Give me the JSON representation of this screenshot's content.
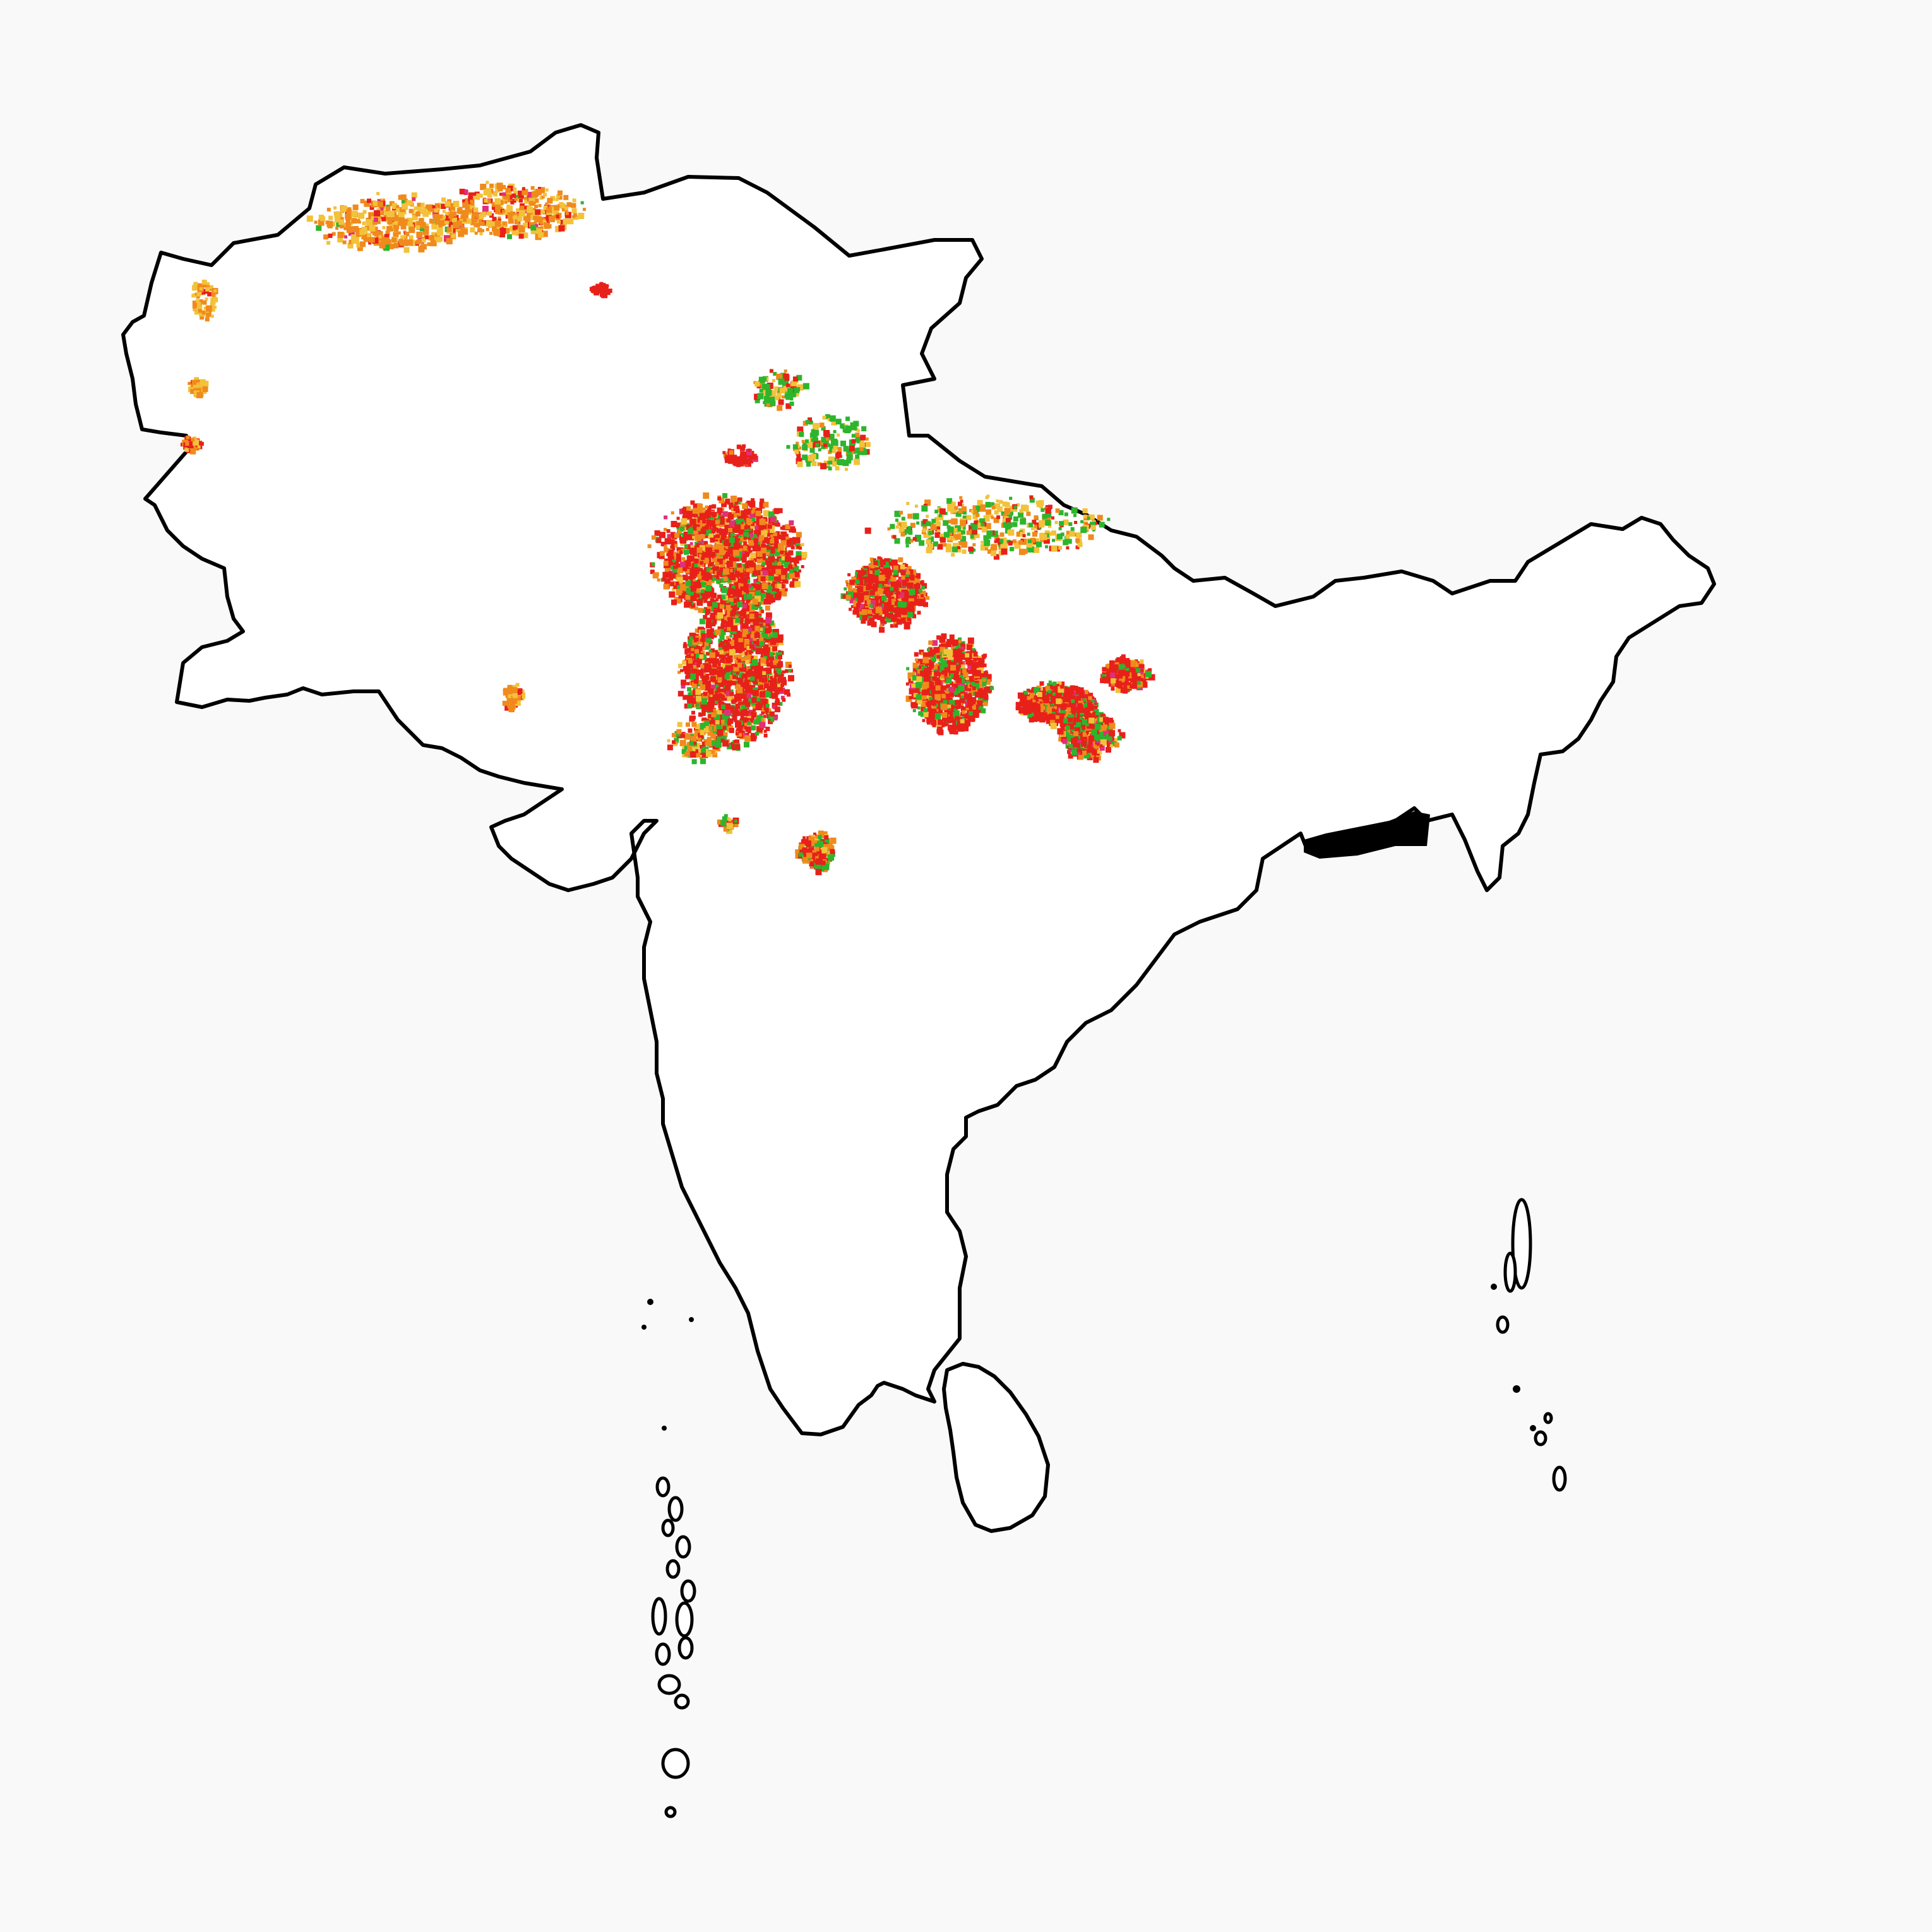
{
  "map": {
    "region": "South Asia",
    "background_color": "#f9f9f9",
    "land_fill": "#ffffff",
    "outline_color": "#000000",
    "patch_palette": {
      "red": "#e8201a",
      "orange": "#f08a1c",
      "yellow": "#f2c23a",
      "green": "#2db52d",
      "pink": "#e0307a"
    }
  }
}
